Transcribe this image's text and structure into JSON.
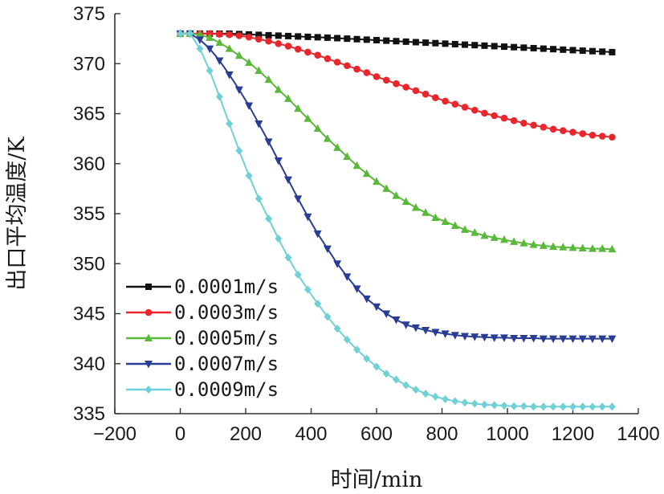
{
  "chart_data": {
    "type": "line",
    "title": "",
    "xlabel": "时间/min",
    "ylabel": "出口平均温度/K",
    "xlim": [
      -200,
      1400
    ],
    "ylim": [
      335,
      375
    ],
    "xticks": [
      -200,
      0,
      200,
      400,
      600,
      800,
      1000,
      1200,
      1400
    ],
    "yticks": [
      335,
      340,
      345,
      350,
      355,
      360,
      365,
      370,
      375
    ],
    "xtick_labels": [
      "−200",
      "0",
      "200",
      "400",
      "600",
      "800",
      "1000",
      "1200",
      "1400"
    ],
    "ytick_labels": [
      "335",
      "340",
      "345",
      "350",
      "355",
      "360",
      "365",
      "370",
      "375"
    ],
    "grid": false,
    "legend_position": "bottom-left",
    "x": [
      0,
      30,
      60,
      90,
      120,
      150,
      180,
      210,
      240,
      270,
      300,
      330,
      360,
      390,
      420,
      450,
      480,
      510,
      540,
      570,
      600,
      630,
      660,
      690,
      720,
      750,
      780,
      810,
      840,
      870,
      900,
      930,
      960,
      990,
      1020,
      1050,
      1080,
      1110,
      1140,
      1170,
      1200,
      1230,
      1260,
      1290,
      1320
    ],
    "series": [
      {
        "name": "0.0001m/s",
        "color": "#111111",
        "marker": "square",
        "values": [
          373.0,
          373.0,
          373.0,
          373.0,
          373.0,
          373.0,
          372.96,
          372.92,
          372.88,
          372.84,
          372.8,
          372.76,
          372.72,
          372.68,
          372.64,
          372.6,
          372.55,
          372.5,
          372.45,
          372.4,
          372.35,
          372.3,
          372.25,
          372.2,
          372.15,
          372.1,
          372.05,
          372.0,
          371.95,
          371.9,
          371.85,
          371.8,
          371.75,
          371.7,
          371.65,
          371.6,
          371.55,
          371.5,
          371.45,
          371.4,
          371.35,
          371.3,
          371.25,
          371.2,
          371.15
        ]
      },
      {
        "name": "0.0003m/s",
        "color": "#e8262b",
        "marker": "circle",
        "values": [
          373.0,
          373.0,
          373.0,
          373.0,
          372.95,
          372.9,
          372.8,
          372.65,
          372.45,
          372.25,
          372.0,
          371.75,
          371.45,
          371.15,
          370.85,
          370.5,
          370.15,
          369.8,
          369.45,
          369.1,
          368.7,
          368.35,
          368.0,
          367.65,
          367.3,
          366.95,
          366.6,
          366.25,
          365.95,
          365.65,
          365.35,
          365.05,
          364.8,
          364.55,
          364.3,
          364.05,
          363.85,
          363.65,
          363.45,
          363.3,
          363.15,
          363.0,
          362.85,
          362.75,
          362.65
        ]
      },
      {
        "name": "0.0005m/s",
        "color": "#5ab83a",
        "marker": "triangle-up",
        "values": [
          373.0,
          373.0,
          372.9,
          372.6,
          372.1,
          371.5,
          370.8,
          370.1,
          369.3,
          368.4,
          367.4,
          366.5,
          365.5,
          364.5,
          363.5,
          362.5,
          361.6,
          360.7,
          359.8,
          359.0,
          358.2,
          357.5,
          356.8,
          356.2,
          355.6,
          355.1,
          354.6,
          354.2,
          353.8,
          353.4,
          353.1,
          352.8,
          352.6,
          352.4,
          352.2,
          352.05,
          351.9,
          351.8,
          351.7,
          351.65,
          351.6,
          351.55,
          351.5,
          351.5,
          351.45
        ]
      },
      {
        "name": "0.0007m/s",
        "color": "#2a3d94",
        "marker": "triangle-down",
        "values": [
          373.0,
          373.0,
          372.4,
          371.5,
          370.3,
          368.9,
          367.4,
          365.8,
          364.0,
          362.2,
          360.3,
          358.4,
          356.5,
          354.7,
          353.0,
          351.5,
          350.0,
          348.7,
          347.5,
          346.5,
          345.7,
          345.0,
          344.4,
          343.9,
          343.6,
          343.35,
          343.15,
          343.0,
          342.85,
          342.75,
          342.7,
          342.65,
          342.6,
          342.6,
          342.55,
          342.55,
          342.55,
          342.5,
          342.5,
          342.5,
          342.5,
          342.5,
          342.5,
          342.5,
          342.5
        ]
      },
      {
        "name": "0.0009m/s",
        "color": "#6fd0d5",
        "marker": "diamond",
        "values": [
          373.0,
          373.0,
          371.5,
          369.3,
          366.7,
          364.0,
          361.3,
          358.8,
          356.5,
          354.5,
          352.5,
          350.6,
          348.9,
          347.4,
          346.0,
          344.7,
          343.5,
          342.4,
          341.4,
          340.5,
          339.7,
          339.0,
          338.4,
          337.85,
          337.4,
          337.0,
          336.7,
          336.45,
          336.25,
          336.1,
          336.0,
          335.9,
          335.85,
          335.8,
          335.75,
          335.75,
          335.7,
          335.7,
          335.7,
          335.7,
          335.7,
          335.7,
          335.7,
          335.7,
          335.7
        ]
      }
    ]
  }
}
